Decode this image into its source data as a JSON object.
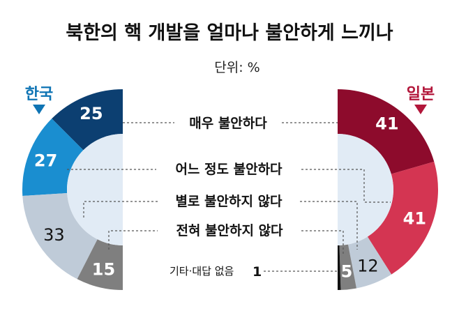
{
  "title": "북한의 핵 개발을 얼마나 불안하게 느끼나",
  "unit": "단위: %",
  "chart_data": {
    "type": "pie",
    "title": "북한의 핵 개발을 얼마나 불안하게 느끼나",
    "unit": "%",
    "categories": [
      "매우 불안하다",
      "어느 정도 불안하다",
      "별로 불안하지 않다",
      "전혀 불안하지 않다",
      "기타·대답 없음"
    ],
    "series": [
      {
        "name": "한국",
        "values": [
          25,
          27,
          33,
          15,
          null
        ],
        "color": "#0e74b4"
      },
      {
        "name": "일본",
        "values": [
          41,
          41,
          12,
          5,
          1
        ],
        "color": "#b2163a"
      }
    ],
    "labels": {
      "other_label": "기타·대답 없음",
      "other_value": "1"
    },
    "colors": {
      "korea": [
        "#0c3f71",
        "#1a8ed0",
        "#bfcbd8",
        "#7f7f7f"
      ],
      "japan": [
        "#8d0b2c",
        "#d43552",
        "#bfcbd8",
        "#7f7f7f",
        "#111111"
      ],
      "inner_fill": "#e1ebf5"
    }
  }
}
